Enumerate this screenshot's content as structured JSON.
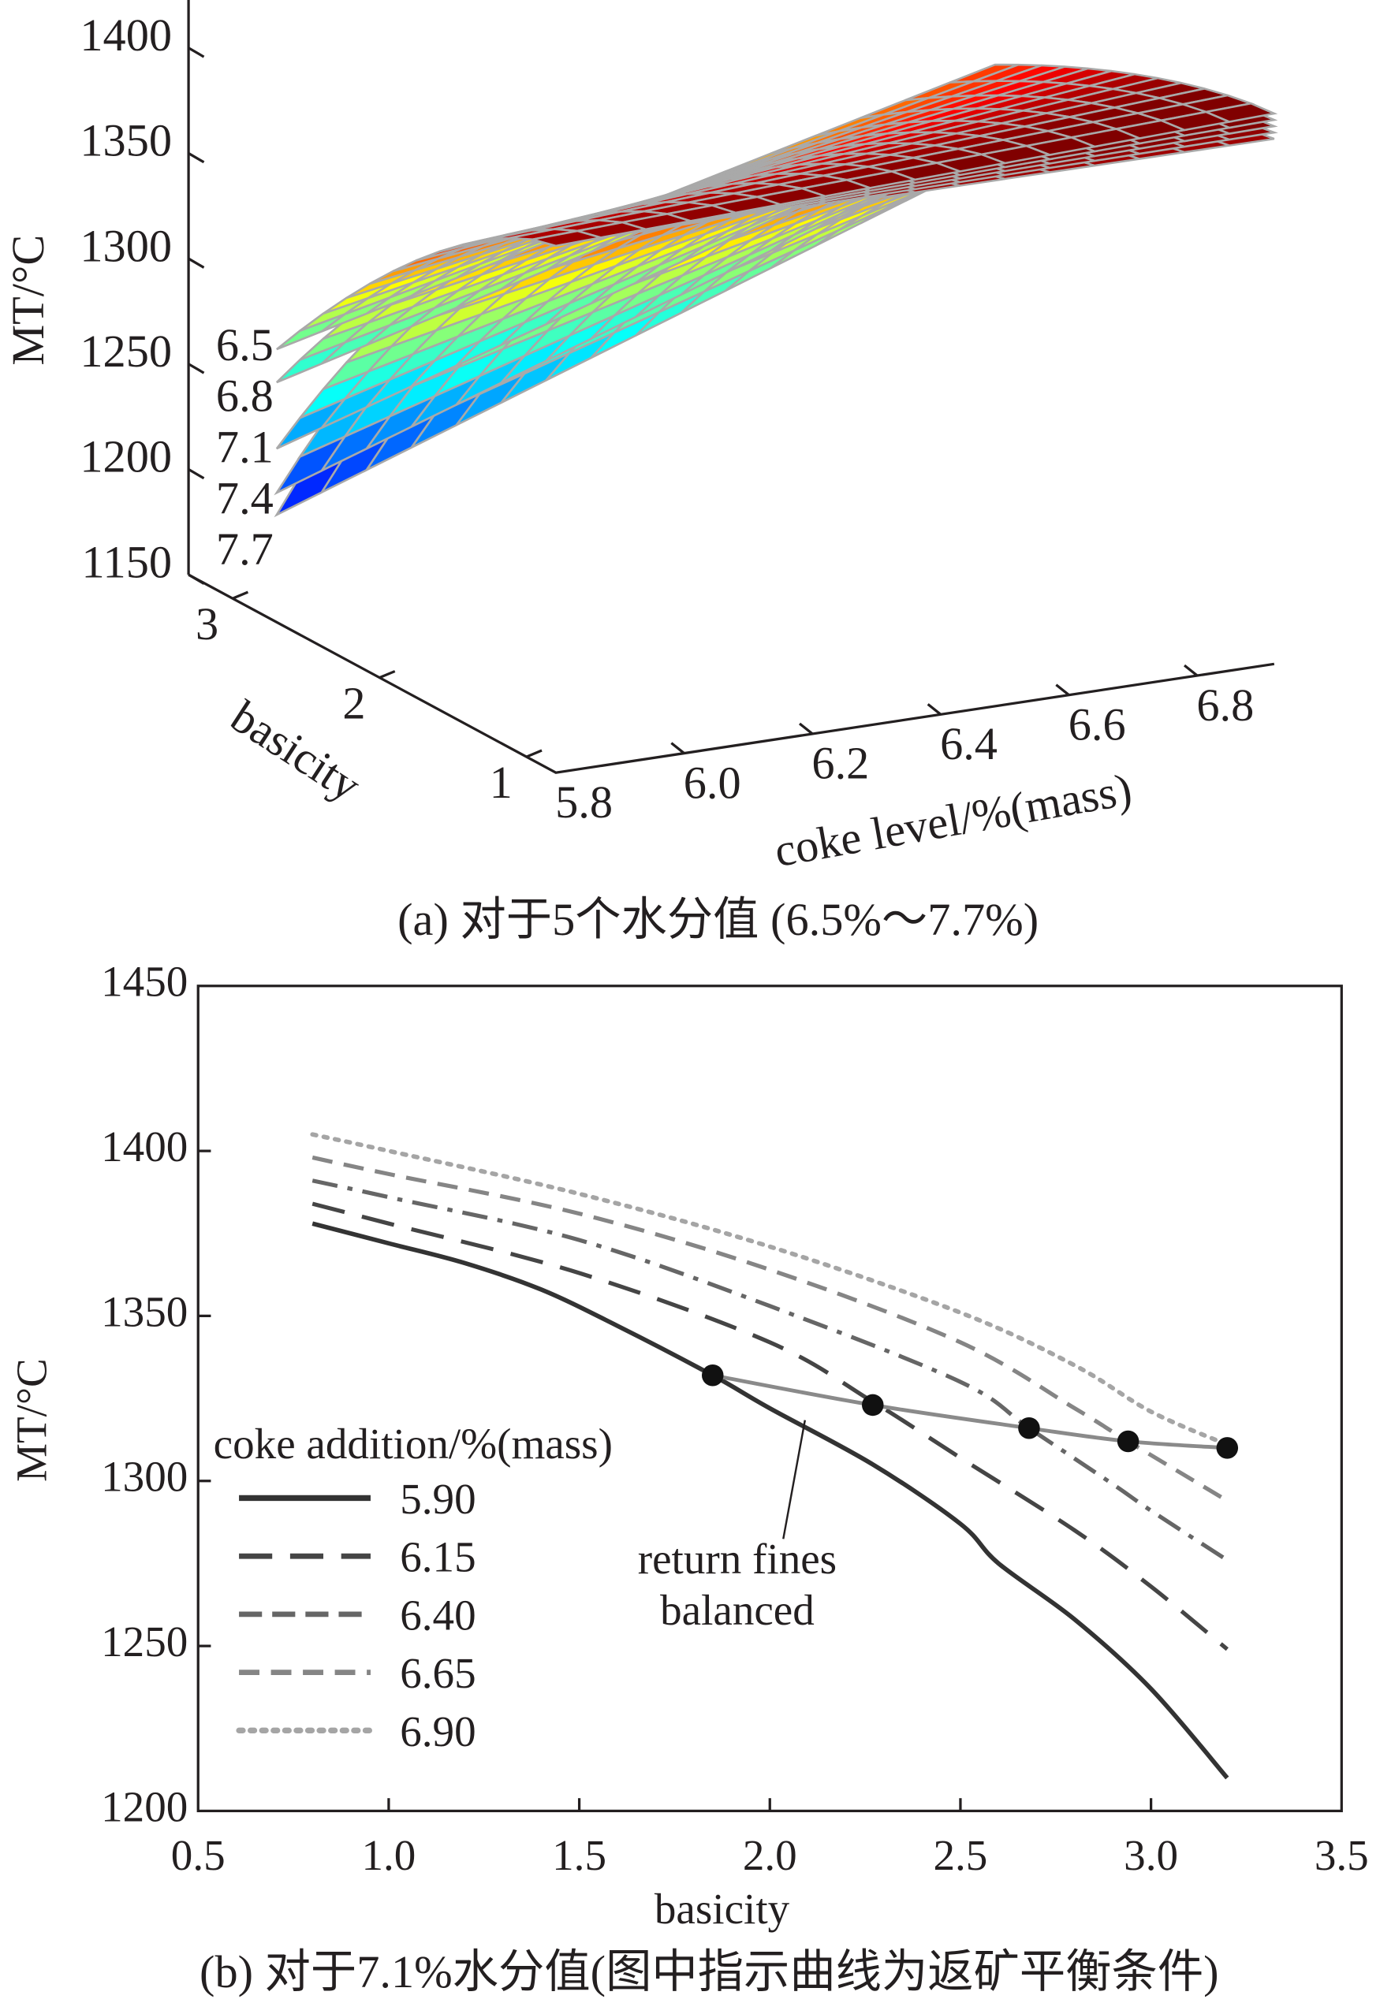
{
  "chart_data": [
    {
      "type": "surface",
      "caption": "(a) 对于5个水分值 (6.5%～7.7%)",
      "zlabel": "MT/°C",
      "xlabel": "coke level/%(mass)",
      "ylabel": "basicity",
      "zticks": [
        "1150",
        "1200",
        "1250",
        "1300",
        "1350",
        "1400"
      ],
      "xticks": [
        "5.8",
        "6.0",
        "6.2",
        "6.4",
        "6.6",
        "6.8"
      ],
      "yticks": [
        "1",
        "2",
        "3"
      ],
      "zlim": [
        1150,
        1400
      ],
      "xlim": [
        5.8,
        6.9
      ],
      "ylim": [
        0.8,
        3.3
      ],
      "series": [
        {
          "name": "6.5"
        },
        {
          "name": "6.8"
        },
        {
          "name": "7.1"
        },
        {
          "name": "7.4"
        },
        {
          "name": "7.7"
        }
      ],
      "colormap": "jet",
      "mesh_color": "#a9a9a9"
    },
    {
      "type": "line",
      "caption": "(b) 对于7.1%水分值(图中指示曲线为返矿平衡条件)",
      "xlabel": "basicity",
      "ylabel": "MT/°C",
      "xlim": [
        0.5,
        3.5
      ],
      "ylim": [
        1200,
        1450
      ],
      "xticks": [
        "0.5",
        "1.0",
        "1.5",
        "2.0",
        "2.5",
        "3.0",
        "3.5"
      ],
      "yticks": [
        "1200",
        "1250",
        "1300",
        "1350",
        "1400",
        "1450"
      ],
      "legend_title": "coke addition/%(mass)",
      "legend_position": "bottom-left",
      "series": [
        {
          "name": "5.90",
          "color": "#333333",
          "x": [
            0.8,
            1.0,
            1.2,
            1.4,
            1.6,
            1.85,
            2.0,
            2.27,
            2.5,
            2.6,
            2.8,
            3.0,
            3.2
          ],
          "y": [
            1378,
            1372,
            1366,
            1358,
            1347,
            1332,
            1322,
            1305,
            1287,
            1275,
            1258,
            1237,
            1210
          ]
        },
        {
          "name": "6.15",
          "color": "#454545",
          "x": [
            0.8,
            1.0,
            1.5,
            2.0,
            2.27,
            2.5,
            2.8,
            3.0,
            3.2
          ],
          "y": [
            1384,
            1378,
            1363,
            1342,
            1324,
            1307,
            1285,
            1268,
            1249
          ]
        },
        {
          "name": "6.40",
          "color": "#666666",
          "x": [
            0.8,
            1.0,
            1.5,
            2.0,
            2.5,
            2.68,
            2.9,
            3.0,
            3.2
          ],
          "y": [
            1391,
            1386,
            1373,
            1353,
            1330,
            1316,
            1299,
            1291,
            1276
          ]
        },
        {
          "name": "6.65",
          "color": "#858585",
          "x": [
            0.8,
            1.0,
            1.5,
            2.0,
            2.5,
            2.8,
            2.94,
            3.2
          ],
          "y": [
            1398,
            1393,
            1381,
            1364,
            1342,
            1322,
            1312,
            1294
          ]
        },
        {
          "name": "6.90",
          "color": "#a5a5a5",
          "x": [
            0.8,
            1.0,
            1.5,
            2.0,
            2.5,
            2.8,
            3.0,
            3.2
          ],
          "y": [
            1405,
            1400,
            1387,
            1371,
            1351,
            1335,
            1321,
            1311
          ]
        }
      ],
      "balance_curve": {
        "color": "#8a8a8a",
        "x": [
          1.85,
          2.27,
          2.68,
          2.94,
          3.2
        ],
        "y": [
          1332,
          1323,
          1316,
          1312,
          1310
        ]
      },
      "annotation": {
        "line1": "return fines",
        "line2": "balanced"
      }
    }
  ]
}
